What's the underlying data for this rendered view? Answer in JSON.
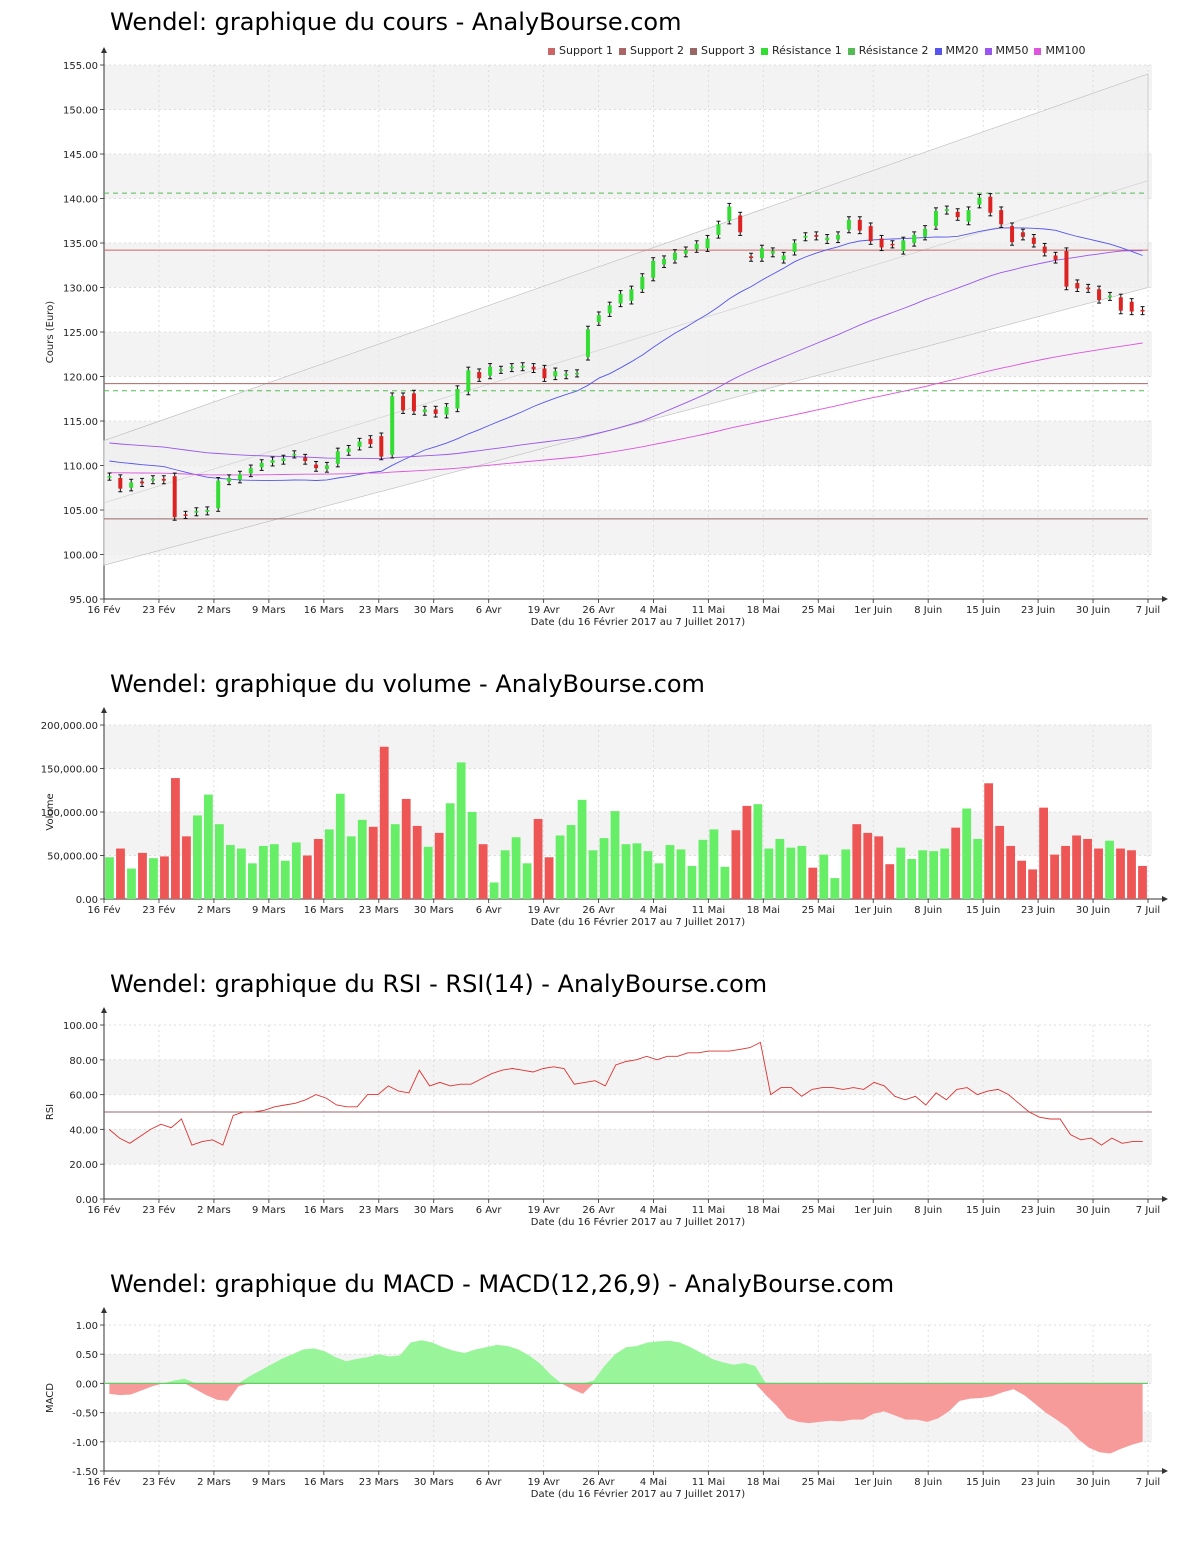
{
  "colors": {
    "up": "#33dd33",
    "down": "#dd2222",
    "vol_up": "#66ee66",
    "vol_down": "#ee5555",
    "support": "#cc6666",
    "support2": "#aa6666",
    "support3": "#996666",
    "resistance": "#55bb55",
    "mm20": "#5555ee",
    "mm50": "#9955ee",
    "mm100": "#dd55dd",
    "rsi": "#dd3333",
    "macd_pos": "#99f599",
    "macd_neg": "#f79a9a"
  },
  "price": {
    "title": "Wendel: graphique du cours - AnalyBourse.com",
    "ylabel": "Cours (Euro)",
    "xlabel": "Date (du 16 Février 2017 au 7 Juillet 2017)",
    "legend": [
      "Support 1",
      "Support 2",
      "Support 3",
      "Résistance 1",
      "Résistance 2",
      "MM20",
      "MM50",
      "MM100"
    ],
    "yticks": [
      "95.00",
      "100.00",
      "105.00",
      "110.00",
      "115.00",
      "120.00",
      "125.00",
      "130.00",
      "135.00",
      "140.00",
      "145.00",
      "150.00",
      "155.00"
    ]
  },
  "volume": {
    "title": "Wendel: graphique du volume - AnalyBourse.com",
    "ylabel": "Volume",
    "xlabel": "Date (du 16 Février 2017 au 7 Juillet 2017)",
    "yticks": [
      "0.00",
      "50,000.00",
      "100,000.00",
      "150,000.00",
      "200,000.00"
    ]
  },
  "rsi": {
    "title": "Wendel: graphique du RSI - RSI(14) - AnalyBourse.com",
    "ylabel": "RSI",
    "xlabel": "Date (du 16 Février 2017 au 7 Juillet 2017)",
    "yticks": [
      "0.00",
      "20.00",
      "40.00",
      "60.00",
      "80.00",
      "100.00"
    ]
  },
  "macd": {
    "title": "Wendel: graphique du MACD - MACD(12,26,9) - AnalyBourse.com",
    "ylabel": "MACD",
    "xlabel": "Date (du 16 Février 2017 au 7 Juillet 2017)",
    "yticks": [
      "-1.50",
      "-1.00",
      "-0.50",
      "0.00",
      "0.50",
      "1.00"
    ]
  },
  "x_labels": [
    "16 Fév",
    "23 Fév",
    "2 Mars",
    "9 Mars",
    "16 Mars",
    "23 Mars",
    "30 Mars",
    "6 Avr",
    "19 Avr",
    "26 Avr",
    "4 Mai",
    "11 Mai",
    "18 Mai",
    "25 Mai",
    "1er Juin",
    "8 Juin",
    "15 Juin",
    "23 Juin",
    "30 Juin",
    "7 Juil"
  ],
  "chart_data": [
    {
      "type": "candlestick",
      "title": "Wendel: graphique du cours - AnalyBourse.com",
      "ylabel": "Cours (Euro)",
      "xlabel": "Date (du 16 Février 2017 au 7 Juillet 2017)",
      "ylim": [
        95,
        155
      ],
      "series": [
        {
          "name": "Cours",
          "open": [
            108.7,
            108.6,
            107.5,
            108.2,
            108.3,
            108.5,
            108.8,
            104.5,
            104.7,
            104.8,
            105.2,
            108.2,
            108.4,
            109.1,
            109.8,
            110.3,
            110.5,
            111.2,
            110.9,
            110.1,
            109.6,
            110.2,
            111.5,
            112.1,
            113.0,
            113.3,
            111.2,
            117.8,
            118.1,
            116.0,
            116.3,
            115.7,
            116.4,
            118.3,
            120.5,
            120.1,
            120.7,
            120.9,
            121.0,
            121.1,
            120.9,
            120.0,
            120.1,
            120.3,
            122.2,
            126.1,
            127.1,
            128.2,
            128.5,
            129.8,
            131.1,
            132.6,
            133.1,
            133.8,
            134.3,
            134.4,
            135.9,
            137.5,
            138.1,
            133.5,
            133.3,
            133.8,
            133.1,
            134.0,
            135.6,
            135.9,
            135.3,
            135.4,
            136.5,
            137.6,
            136.9,
            135.5,
            134.9,
            134.1,
            135.0,
            135.7,
            136.9,
            138.6,
            138.5,
            137.4,
            139.3,
            140.2,
            138.7,
            136.9,
            136.2,
            135.6,
            134.6,
            133.6,
            134.1,
            130.5,
            130.0,
            129.8,
            128.9,
            128.9,
            128.4,
            127.5
          ],
          "close": [
            108.8,
            107.4,
            108.1,
            108.0,
            108.5,
            108.3,
            104.2,
            104.4,
            104.9,
            105.0,
            108.3,
            108.6,
            109.0,
            109.7,
            110.3,
            110.6,
            110.8,
            111.3,
            110.5,
            109.7,
            110.0,
            111.6,
            111.9,
            112.7,
            112.4,
            111.0,
            117.8,
            116.2,
            116.1,
            116.3,
            115.8,
            116.6,
            118.6,
            120.7,
            119.8,
            121.1,
            120.8,
            121.1,
            121.2,
            120.8,
            119.8,
            120.6,
            120.3,
            120.4,
            125.3,
            126.9,
            128.0,
            129.3,
            129.8,
            131.2,
            133.0,
            133.2,
            133.9,
            134.2,
            134.9,
            135.5,
            137.1,
            139.1,
            136.2,
            133.3,
            134.4,
            134.1,
            133.6,
            135.0,
            135.8,
            135.7,
            135.6,
            135.9,
            137.6,
            136.4,
            135.2,
            134.5,
            134.8,
            135.3,
            135.9,
            136.6,
            138.6,
            138.8,
            137.9,
            138.7,
            140.1,
            138.4,
            137.1,
            135.1,
            135.7,
            134.9,
            133.9,
            133.1,
            130.1,
            129.9,
            129.8,
            128.6,
            129.1,
            127.4,
            127.3,
            127.3
          ]
        }
      ]
    },
    {
      "type": "bar",
      "title": "Wendel: graphique du volume - AnalyBourse.com",
      "ylabel": "Volume",
      "ylim": [
        0,
        200000
      ],
      "series": [
        {
          "name": "Volume",
          "values": [
            48000,
            58000,
            35000,
            53000,
            47000,
            49000,
            139000,
            72000,
            96000,
            120000,
            86000,
            62000,
            58000,
            41000,
            61000,
            63000,
            44000,
            65000,
            50000,
            69000,
            80000,
            121000,
            72000,
            91000,
            83000,
            175000,
            86000,
            115000,
            84000,
            60000,
            76000,
            110000,
            157000,
            100000,
            63000,
            19000,
            56000,
            71000,
            41000,
            92000,
            48000,
            73000,
            85000,
            114000,
            56000,
            70000,
            101000,
            63000,
            64000,
            55000,
            41000,
            62000,
            57000,
            38000,
            68000,
            80000,
            37000,
            79000,
            107000,
            109000,
            58000,
            69000,
            59000,
            61000,
            36000,
            51000,
            24000,
            57000,
            86000,
            76000,
            72000,
            40000,
            59000,
            46000,
            56000,
            55000,
            58000,
            82000,
            104000,
            69000,
            133000,
            84000,
            61000,
            44000,
            34000,
            105000,
            51000,
            61000,
            73000,
            69000,
            58000,
            67000,
            58000,
            56000,
            38000
          ]
        }
      ]
    },
    {
      "type": "line",
      "title": "Wendel: graphique du RSI - RSI(14) - AnalyBourse.com",
      "ylabel": "RSI",
      "ylim": [
        0,
        100
      ],
      "series": [
        {
          "name": "RSI",
          "values": [
            40,
            35,
            32,
            36,
            40,
            43,
            41,
            46,
            31,
            33,
            34,
            31,
            48,
            50,
            50,
            51,
            53,
            54,
            55,
            57,
            60,
            58,
            54,
            53,
            53,
            60,
            60,
            65,
            62,
            61,
            74,
            65,
            67,
            65,
            66,
            66,
            69,
            72,
            74,
            75,
            74,
            73,
            75,
            76,
            75,
            66,
            67,
            68,
            65,
            77,
            79,
            80,
            82,
            80,
            82,
            82,
            84,
            84,
            85,
            85,
            85,
            86,
            87,
            90,
            60,
            64,
            64,
            59,
            63,
            64,
            64,
            63,
            64,
            63,
            67,
            65,
            59,
            57,
            59,
            54,
            61,
            57,
            63,
            64,
            60,
            62,
            63,
            60,
            55,
            50,
            47,
            46,
            46,
            37,
            34,
            35,
            31,
            35,
            32,
            33,
            33
          ]
        }
      ]
    },
    {
      "type": "area",
      "title": "Wendel: graphique du MACD - MACD(12,26,9) - AnalyBourse.com",
      "ylabel": "MACD",
      "ylim": [
        -1.5,
        1.0
      ],
      "series": [
        {
          "name": "MACD",
          "values": [
            -0.18,
            -0.2,
            -0.19,
            -0.12,
            -0.05,
            0.0,
            0.05,
            0.08,
            -0.1,
            -0.2,
            -0.28,
            -0.3,
            -0.05,
            0.12,
            0.22,
            0.32,
            0.42,
            0.5,
            0.58,
            0.6,
            0.55,
            0.45,
            0.38,
            0.42,
            0.45,
            0.5,
            0.46,
            0.48,
            0.7,
            0.74,
            0.7,
            0.62,
            0.56,
            0.52,
            0.58,
            0.62,
            0.66,
            0.64,
            0.58,
            0.48,
            0.34,
            0.15,
            0.0,
            -0.1,
            -0.18,
            0.05,
            0.3,
            0.5,
            0.62,
            0.64,
            0.7,
            0.72,
            0.73,
            0.7,
            0.62,
            0.52,
            0.42,
            0.36,
            0.32,
            0.35,
            0.3,
            -0.2,
            -0.38,
            -0.6,
            -0.66,
            -0.68,
            -0.66,
            -0.64,
            -0.65,
            -0.62,
            -0.62,
            -0.52,
            -0.48,
            -0.55,
            -0.62,
            -0.62,
            -0.66,
            -0.6,
            -0.48,
            -0.3,
            -0.26,
            -0.25,
            -0.22,
            -0.15,
            -0.1,
            -0.2,
            -0.35,
            -0.5,
            -0.62,
            -0.75,
            -0.95,
            -1.1,
            -1.18,
            -1.2,
            -1.12,
            -1.05,
            -1.0
          ]
        }
      ]
    }
  ]
}
